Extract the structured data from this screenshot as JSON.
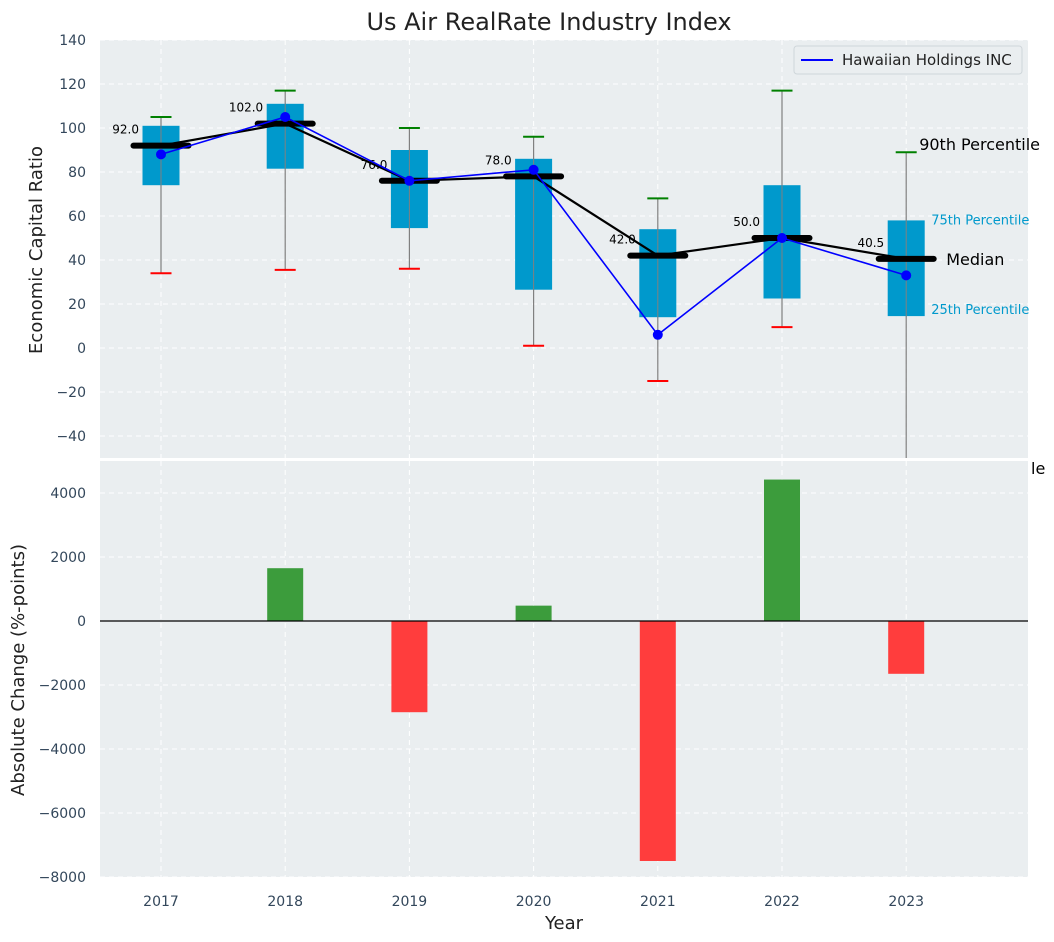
{
  "chart_data": [
    {
      "type": "box",
      "title": "Us Air RealRate Industry Index",
      "ylabel": "Economic Capital Ratio",
      "ylim": [
        -50,
        140
      ],
      "yticks": [
        -40,
        -20,
        0,
        20,
        40,
        60,
        80,
        100,
        120,
        140
      ],
      "grid": true,
      "legend": {
        "position": "top-right",
        "entries": [
          "Hawaiian Holdings INC"
        ]
      },
      "categories": [
        "2017",
        "2018",
        "2019",
        "2020",
        "2021",
        "2022",
        "2023"
      ],
      "boxes": [
        {
          "year": "2017",
          "p10": 34,
          "p25": 74,
          "median": 92,
          "p75": 101,
          "p90": 105,
          "median_label": "92.0"
        },
        {
          "year": "2018",
          "p10": 35.5,
          "p25": 81.5,
          "median": 102,
          "p75": 111,
          "p90": 117,
          "median_label": "102.0"
        },
        {
          "year": "2019",
          "p10": 36,
          "p25": 54.5,
          "median": 76,
          "p75": 90,
          "p90": 100,
          "median_label": "76.0"
        },
        {
          "year": "2020",
          "p10": 1,
          "p25": 26.5,
          "median": 78,
          "p75": 86,
          "p90": 96,
          "median_label": "78.0"
        },
        {
          "year": "2021",
          "p10": -15,
          "p25": 14,
          "median": 42,
          "p75": 54,
          "p90": 68,
          "median_label": "42.0"
        },
        {
          "year": "2022",
          "p10": 9.5,
          "p25": 22.5,
          "median": 50,
          "p75": 74,
          "p90": 117,
          "median_label": "50.0"
        },
        {
          "year": "2023",
          "p10": -55,
          "p25": 14.5,
          "median": 40.5,
          "p75": 58,
          "p90": 89,
          "median_label": "40.5"
        }
      ],
      "series": [
        {
          "name": "Hawaiian Holdings INC",
          "color": "#0000ff",
          "values": [
            88,
            105,
            76,
            81,
            6,
            50,
            33
          ]
        }
      ],
      "annotations": {
        "p90": "90th Percentile",
        "p75": "75th Percentile",
        "median": "Median",
        "p25": "25th Percentile",
        "cut_text": "le"
      }
    },
    {
      "type": "bar",
      "xlabel": "Year",
      "ylabel": "Absolute Change (%-points)",
      "ylim": [
        -8000,
        5000
      ],
      "yticks": [
        -8000,
        -6000,
        -4000,
        -2000,
        0,
        2000,
        4000
      ],
      "grid": true,
      "categories": [
        "2018",
        "2019",
        "2020",
        "2021",
        "2022",
        "2023"
      ],
      "values": [
        1650,
        -2850,
        480,
        -7500,
        4420,
        -1650
      ]
    }
  ],
  "colors": {
    "box_fill": "#0099cc",
    "median_line": "#000000",
    "whisker_top": "#008000",
    "whisker_bottom": "#ff0000",
    "series_line": "#0000ff",
    "positive_bar": "#3c9c3c",
    "negative_bar": "#ff3d3d",
    "plot_bg": "#eaeef0",
    "grid": "#ffffff"
  }
}
